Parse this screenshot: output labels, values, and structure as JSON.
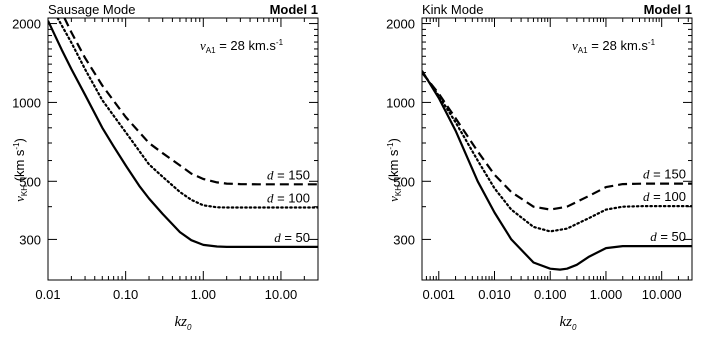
{
  "chart_data": [
    {
      "type": "line",
      "title_left": "Sausage Mode",
      "title_right": "Model 1",
      "xlabel": "kz",
      "xlabel_sub": "0",
      "ylabel": "v",
      "ylabel_sub": "KH",
      "ylabel_unit": "(km s",
      "ylabel_unit_sup": "-1",
      "ylabel_close": ")",
      "annotation": {
        "sym": "v",
        "sub": "A1",
        "rest": " = 28 km.s",
        "sup": "-1"
      },
      "x_scale": "log",
      "y_scale": "log",
      "xlim": [
        0.01,
        30
      ],
      "ylim": [
        210,
        2100
      ],
      "xticks": [
        0.01,
        0.1,
        1,
        10
      ],
      "xtick_labels": [
        "0.01",
        "0.10",
        "1.00",
        "10.00"
      ],
      "yticks": [
        300,
        500,
        1000,
        2000
      ],
      "ytick_labels": [
        "300",
        "500",
        "1000",
        "2000"
      ],
      "series": [
        {
          "name": "d = 150",
          "label_var": "d",
          "label_val": "= 150",
          "style": "dashed",
          "x": [
            0.0163,
            0.02,
            0.03,
            0.05,
            0.1,
            0.2,
            0.3,
            0.5,
            0.7,
            1.0,
            1.5,
            2.0,
            3.0,
            5.0,
            10.0,
            30.0
          ],
          "y": [
            2100,
            1850,
            1480,
            1160,
            880,
            700,
            640,
            575,
            535,
            510,
            495,
            490,
            488,
            487,
            487,
            487
          ]
        },
        {
          "name": "d = 100",
          "label_var": "d",
          "label_val": "= 100",
          "style": "dotted",
          "x": [
            0.0133,
            0.02,
            0.03,
            0.05,
            0.1,
            0.2,
            0.3,
            0.5,
            0.7,
            1.0,
            1.5,
            2.0,
            3.0,
            5.0,
            10.0,
            30.0
          ],
          "y": [
            2100,
            1690,
            1340,
            1020,
            770,
            580,
            520,
            455,
            425,
            405,
            398,
            397,
            397,
            397,
            397,
            397
          ]
        },
        {
          "name": "d = 50",
          "label_var": "d",
          "label_val": "= 50",
          "style": "solid",
          "x": [
            0.01,
            0.015,
            0.02,
            0.03,
            0.05,
            0.07,
            0.1,
            0.15,
            0.2,
            0.3,
            0.5,
            0.7,
            1.0,
            1.5,
            2.0,
            3.0,
            5.0,
            10.0,
            30.0
          ],
          "y": [
            2050,
            1590,
            1340,
            1070,
            800,
            680,
            575,
            480,
            430,
            375,
            320,
            298,
            286,
            282,
            281,
            281,
            281,
            281,
            281
          ]
        }
      ]
    },
    {
      "type": "line",
      "title_left": "Kink Mode",
      "title_right": "Model 1",
      "xlabel": "kz",
      "xlabel_sub": "0",
      "ylabel": "v",
      "ylabel_sub": "KH",
      "ylabel_unit": "(km s",
      "ylabel_unit_sup": "-1",
      "ylabel_close": ")",
      "annotation": {
        "sym": "v",
        "sub": "A1",
        "rest": " = 28 km.s",
        "sup": "-1"
      },
      "x_scale": "log",
      "y_scale": "log",
      "xlim": [
        0.0005,
        35
      ],
      "ylim": [
        210,
        2100
      ],
      "xticks": [
        0.001,
        0.01,
        0.1,
        1,
        10
      ],
      "xtick_labels": [
        "0.001",
        "0.010",
        "0.100",
        "1.000",
        "10.000"
      ],
      "yticks": [
        300,
        500,
        1000,
        2000
      ],
      "ytick_labels": [
        "300",
        "500",
        "1000",
        "2000"
      ],
      "series": [
        {
          "name": "d = 150",
          "label_var": "d",
          "label_val": "= 150",
          "style": "dashed",
          "x": [
            0.0005,
            0.001,
            0.002,
            0.005,
            0.01,
            0.02,
            0.05,
            0.1,
            0.2,
            0.5,
            1.0,
            2.0,
            5.0,
            10.0,
            35.0
          ],
          "y": [
            1300,
            1080,
            870,
            650,
            530,
            455,
            400,
            390,
            400,
            440,
            475,
            488,
            490,
            490,
            490
          ]
        },
        {
          "name": "d = 100",
          "label_var": "d",
          "label_val": "= 100",
          "style": "dotted",
          "x": [
            0.0005,
            0.001,
            0.002,
            0.005,
            0.01,
            0.02,
            0.05,
            0.1,
            0.2,
            0.5,
            1.0,
            2.0,
            5.0,
            10.0,
            35.0
          ],
          "y": [
            1310,
            1060,
            840,
            600,
            470,
            390,
            335,
            322,
            330,
            362,
            390,
            400,
            402,
            402,
            402
          ]
        },
        {
          "name": "d = 50",
          "label_var": "d",
          "label_val": "= 50",
          "style": "solid",
          "x": [
            0.0005,
            0.001,
            0.002,
            0.005,
            0.01,
            0.02,
            0.05,
            0.1,
            0.15,
            0.2,
            0.3,
            0.5,
            1.0,
            2.0,
            5.0,
            10.0,
            35.0
          ],
          "y": [
            1320,
            1040,
            780,
            500,
            380,
            300,
            245,
            232,
            230,
            232,
            240,
            258,
            278,
            283,
            283,
            283,
            283
          ]
        }
      ]
    }
  ]
}
